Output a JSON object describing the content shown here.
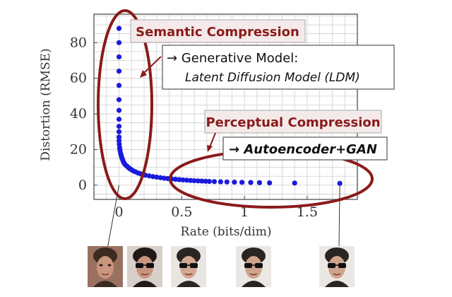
{
  "chart_data": {
    "type": "scatter",
    "title": "",
    "xlabel": "Rate (bits/dim)",
    "ylabel": "Distortion (RMSE)",
    "xlim": [
      -0.2,
      1.9
    ],
    "ylim": [
      -8,
      96
    ],
    "grid": true,
    "xticks": [
      {
        "value": 0,
        "label": "0"
      },
      {
        "value": 0.5,
        "label": "0.5"
      },
      {
        "value": 1,
        "label": "1"
      },
      {
        "value": 1.5,
        "label": "1.5"
      }
    ],
    "yticks": [
      {
        "value": 0,
        "label": "0"
      },
      {
        "value": 20,
        "label": "20"
      },
      {
        "value": 40,
        "label": "40"
      },
      {
        "value": 60,
        "label": "60"
      },
      {
        "value": 80,
        "label": "80"
      }
    ],
    "point_color": "#1a1adc",
    "series": [
      {
        "x": [
          0.0,
          0.0,
          0.0,
          0.0,
          0.0,
          0.0,
          0.0,
          0.0,
          0.0,
          0.0,
          0.0,
          0.0,
          0.002,
          0.005,
          0.008,
          0.012,
          0.016,
          0.02,
          0.025,
          0.03,
          0.036,
          0.042,
          0.05,
          0.06,
          0.07,
          0.08,
          0.09,
          0.1,
          0.115,
          0.13,
          0.15,
          0.17,
          0.19,
          0.21,
          0.24,
          0.27,
          0.3,
          0.33,
          0.36,
          0.39,
          0.42,
          0.45,
          0.48,
          0.51,
          0.54,
          0.57,
          0.6,
          0.63,
          0.66,
          0.69,
          0.72,
          0.76,
          0.81,
          0.86,
          0.92,
          0.98,
          1.05,
          1.12,
          1.2,
          1.4,
          1.76
        ],
        "y": [
          88,
          80,
          72,
          64,
          56,
          48,
          42,
          37,
          33,
          30,
          27,
          25,
          23,
          21,
          19.5,
          18,
          17,
          16,
          15,
          14,
          13,
          12.2,
          11.5,
          10.8,
          10.2,
          9.6,
          9.1,
          8.6,
          8.0,
          7.5,
          6.9,
          6.4,
          6.0,
          5.6,
          5.2,
          4.8,
          4.5,
          4.2,
          3.9,
          3.7,
          3.5,
          3.3,
          3.1,
          2.95,
          2.8,
          2.65,
          2.5,
          2.4,
          2.3,
          2.2,
          2.1,
          2.0,
          1.9,
          1.8,
          1.7,
          1.6,
          1.5,
          1.4,
          1.3,
          1.2,
          1.0
        ]
      }
    ],
    "annotations": {
      "semantic_label": "Semantic Compression",
      "generative_line1": "→ Generative Model:",
      "generative_line2": "Latent Diffusion Model (LDM)",
      "perceptual_label": "Perceptual Compression",
      "autoencoder_label": "→ Autoencoder+GAN"
    },
    "highlight_color": "#8b1a1a",
    "label_bg": "#f6ecec"
  },
  "thumbnails": [
    {
      "name": "woman-portrait",
      "skin": "#c9967d",
      "hair": "#3a2a22",
      "bg": "#9a7060",
      "glasses": false
    },
    {
      "name": "man-sunglasses-1",
      "skin": "#c89480",
      "hair": "#1f1a18",
      "bg": "#d7cfc9",
      "glasses": true
    },
    {
      "name": "man-sunglasses-2",
      "skin": "#d2a890",
      "hair": "#2a2522",
      "bg": "#e9e6e2",
      "glasses": true
    },
    {
      "name": "man-sunglasses-3",
      "skin": "#cfa48c",
      "hair": "#2a2522",
      "bg": "#ebe8e4",
      "glasses": true
    },
    {
      "name": "man-sunglasses-4",
      "skin": "#cfa48c",
      "hair": "#2a2522",
      "bg": "#ebe8e4",
      "glasses": true
    }
  ]
}
